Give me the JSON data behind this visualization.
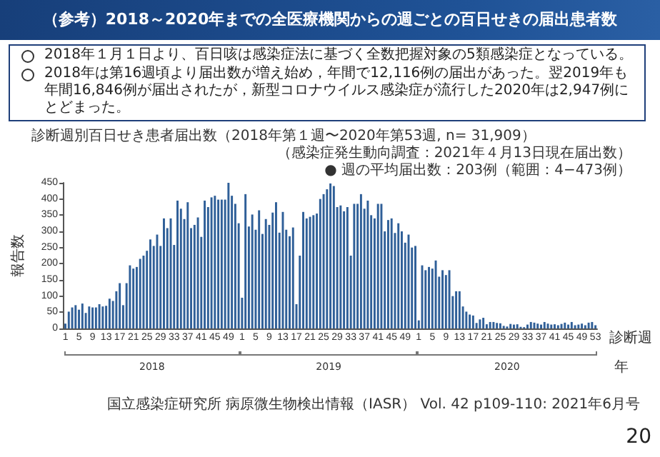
{
  "chart_data": {
    "type": "bar",
    "title": "（参考）2018～2020年までの全医療機関からの週ごとの百日せきの届出患者数",
    "subtitle": "診断週別百日せき患者届出数（2018年第１週〜2020年第53週, n= 31,909）",
    "xlabel": "診断週",
    "ylabel": "報告数",
    "annotations": [
      "2018年１月１日より、百日咳は感染症法に基づく全数把握対象の5類感染症となっている。",
      "2018年は第16週頃より届出数が増え始め，年間で12,116例の届出があった。翌2019年も年間16,846例が届出されたが，新型コロナウイルス感染症が流行した2020年は2,947例にとどまった。",
      "（感染症発生動向調査：2021年４月13日現在届出数）",
      "● 週の平均届出数：203例（範囲：4−473例）",
      "2018",
      "2019",
      "2020",
      "年",
      "国立感染症研究所 病原微生物検出情報（IASR） Vol. 42 p109-110: 2021年6月号",
      "20"
    ],
    "categories": [
      "1",
      null,
      null,
      null,
      "5",
      null,
      null,
      null,
      "9",
      null,
      null,
      null,
      "13",
      null,
      null,
      null,
      "17",
      null,
      null,
      null,
      "21",
      null,
      null,
      null,
      "25",
      null,
      null,
      null,
      "29",
      null,
      null,
      null,
      "33",
      null,
      null,
      null,
      "37",
      null,
      null,
      null,
      "41",
      null,
      null,
      null,
      "45",
      null,
      null,
      null,
      "49",
      null,
      null,
      null,
      "1",
      null,
      null,
      null,
      "5",
      null,
      null,
      null,
      "9",
      null,
      null,
      null,
      "13",
      null,
      null,
      null,
      "17",
      null,
      null,
      null,
      "21",
      null,
      null,
      null,
      "25",
      null,
      null,
      null,
      "29",
      null,
      null,
      null,
      "33",
      null,
      null,
      null,
      "37",
      null,
      null,
      null,
      "41",
      null,
      null,
      null,
      "45",
      null,
      null,
      null,
      "49",
      null,
      null,
      null,
      "1",
      null,
      null,
      null,
      "5",
      null,
      null,
      null,
      "9",
      null,
      null,
      null,
      "13",
      null,
      null,
      null,
      "17",
      null,
      null,
      null,
      "21",
      null,
      null,
      null,
      "25",
      null,
      null,
      null,
      "29",
      null,
      null,
      null,
      "33",
      null,
      null,
      null,
      "37",
      null,
      null,
      null,
      "41",
      null,
      null,
      null,
      "45",
      null,
      null,
      null,
      "49",
      null,
      null,
      null,
      "53"
    ],
    "values": [
      15,
      52,
      65,
      72,
      58,
      77,
      48,
      68,
      65,
      65,
      75,
      68,
      70,
      92,
      85,
      115,
      140,
      72,
      140,
      195,
      185,
      190,
      215,
      225,
      240,
      275,
      255,
      290,
      255,
      340,
      310,
      340,
      258,
      395,
      370,
      338,
      390,
      310,
      320,
      343,
      283,
      395,
      375,
      405,
      410,
      398,
      398,
      398,
      450,
      410,
      385,
      325,
      95,
      415,
      315,
      352,
      305,
      365,
      292,
      338,
      320,
      358,
      390,
      296,
      360,
      305,
      285,
      312,
      75,
      225,
      360,
      340,
      345,
      350,
      355,
      400,
      415,
      430,
      448,
      440,
      375,
      380,
      362,
      375,
      225,
      385,
      385,
      415,
      370,
      395,
      350,
      340,
      385,
      385,
      300,
      335,
      340,
      295,
      325,
      300,
      265,
      290,
      250,
      255,
      25,
      195,
      180,
      190,
      185,
      210,
      160,
      180,
      165,
      180,
      100,
      115,
      115,
      68,
      52,
      43,
      40,
      17,
      28,
      33,
      13,
      20,
      20,
      17,
      16,
      8,
      6,
      14,
      12,
      13,
      5,
      4,
      12,
      20,
      18,
      15,
      12,
      20,
      15,
      12,
      13,
      10,
      14,
      18,
      12,
      20,
      10,
      12,
      15,
      10,
      18,
      20,
      10
    ],
    "color": "#2f5f98",
    "ylim": [
      0,
      450
    ],
    "yticks": [
      0,
      50,
      100,
      150,
      200,
      250,
      300,
      350,
      400,
      450
    ]
  }
}
